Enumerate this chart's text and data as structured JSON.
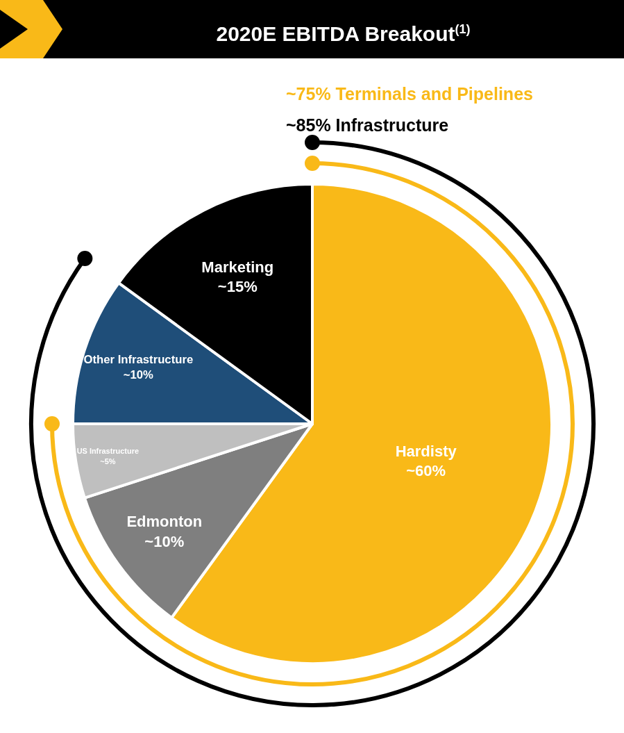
{
  "chart_data": {
    "type": "pie",
    "title": "2020E EBITDA Breakout$^{(1)}$",
    "categories": [
      "Hardisty",
      "Edmonton",
      "US Infrastructure",
      "Other Infrastructure",
      "Marketing"
    ],
    "values": [
      60,
      10,
      5,
      10,
      15
    ],
    "value_labels": [
      "~60%",
      "~10%",
      "~5%",
      "~10%",
      "~15%"
    ],
    "colors": [
      "#f9b918",
      "#7f7f7f",
      "#bfbfbf",
      "#1f4e79",
      "#000000"
    ],
    "annotations": [
      "~75% Terminals and Pipelines",
      "~85% Infrastructure"
    ],
    "legend": false
  }
}
